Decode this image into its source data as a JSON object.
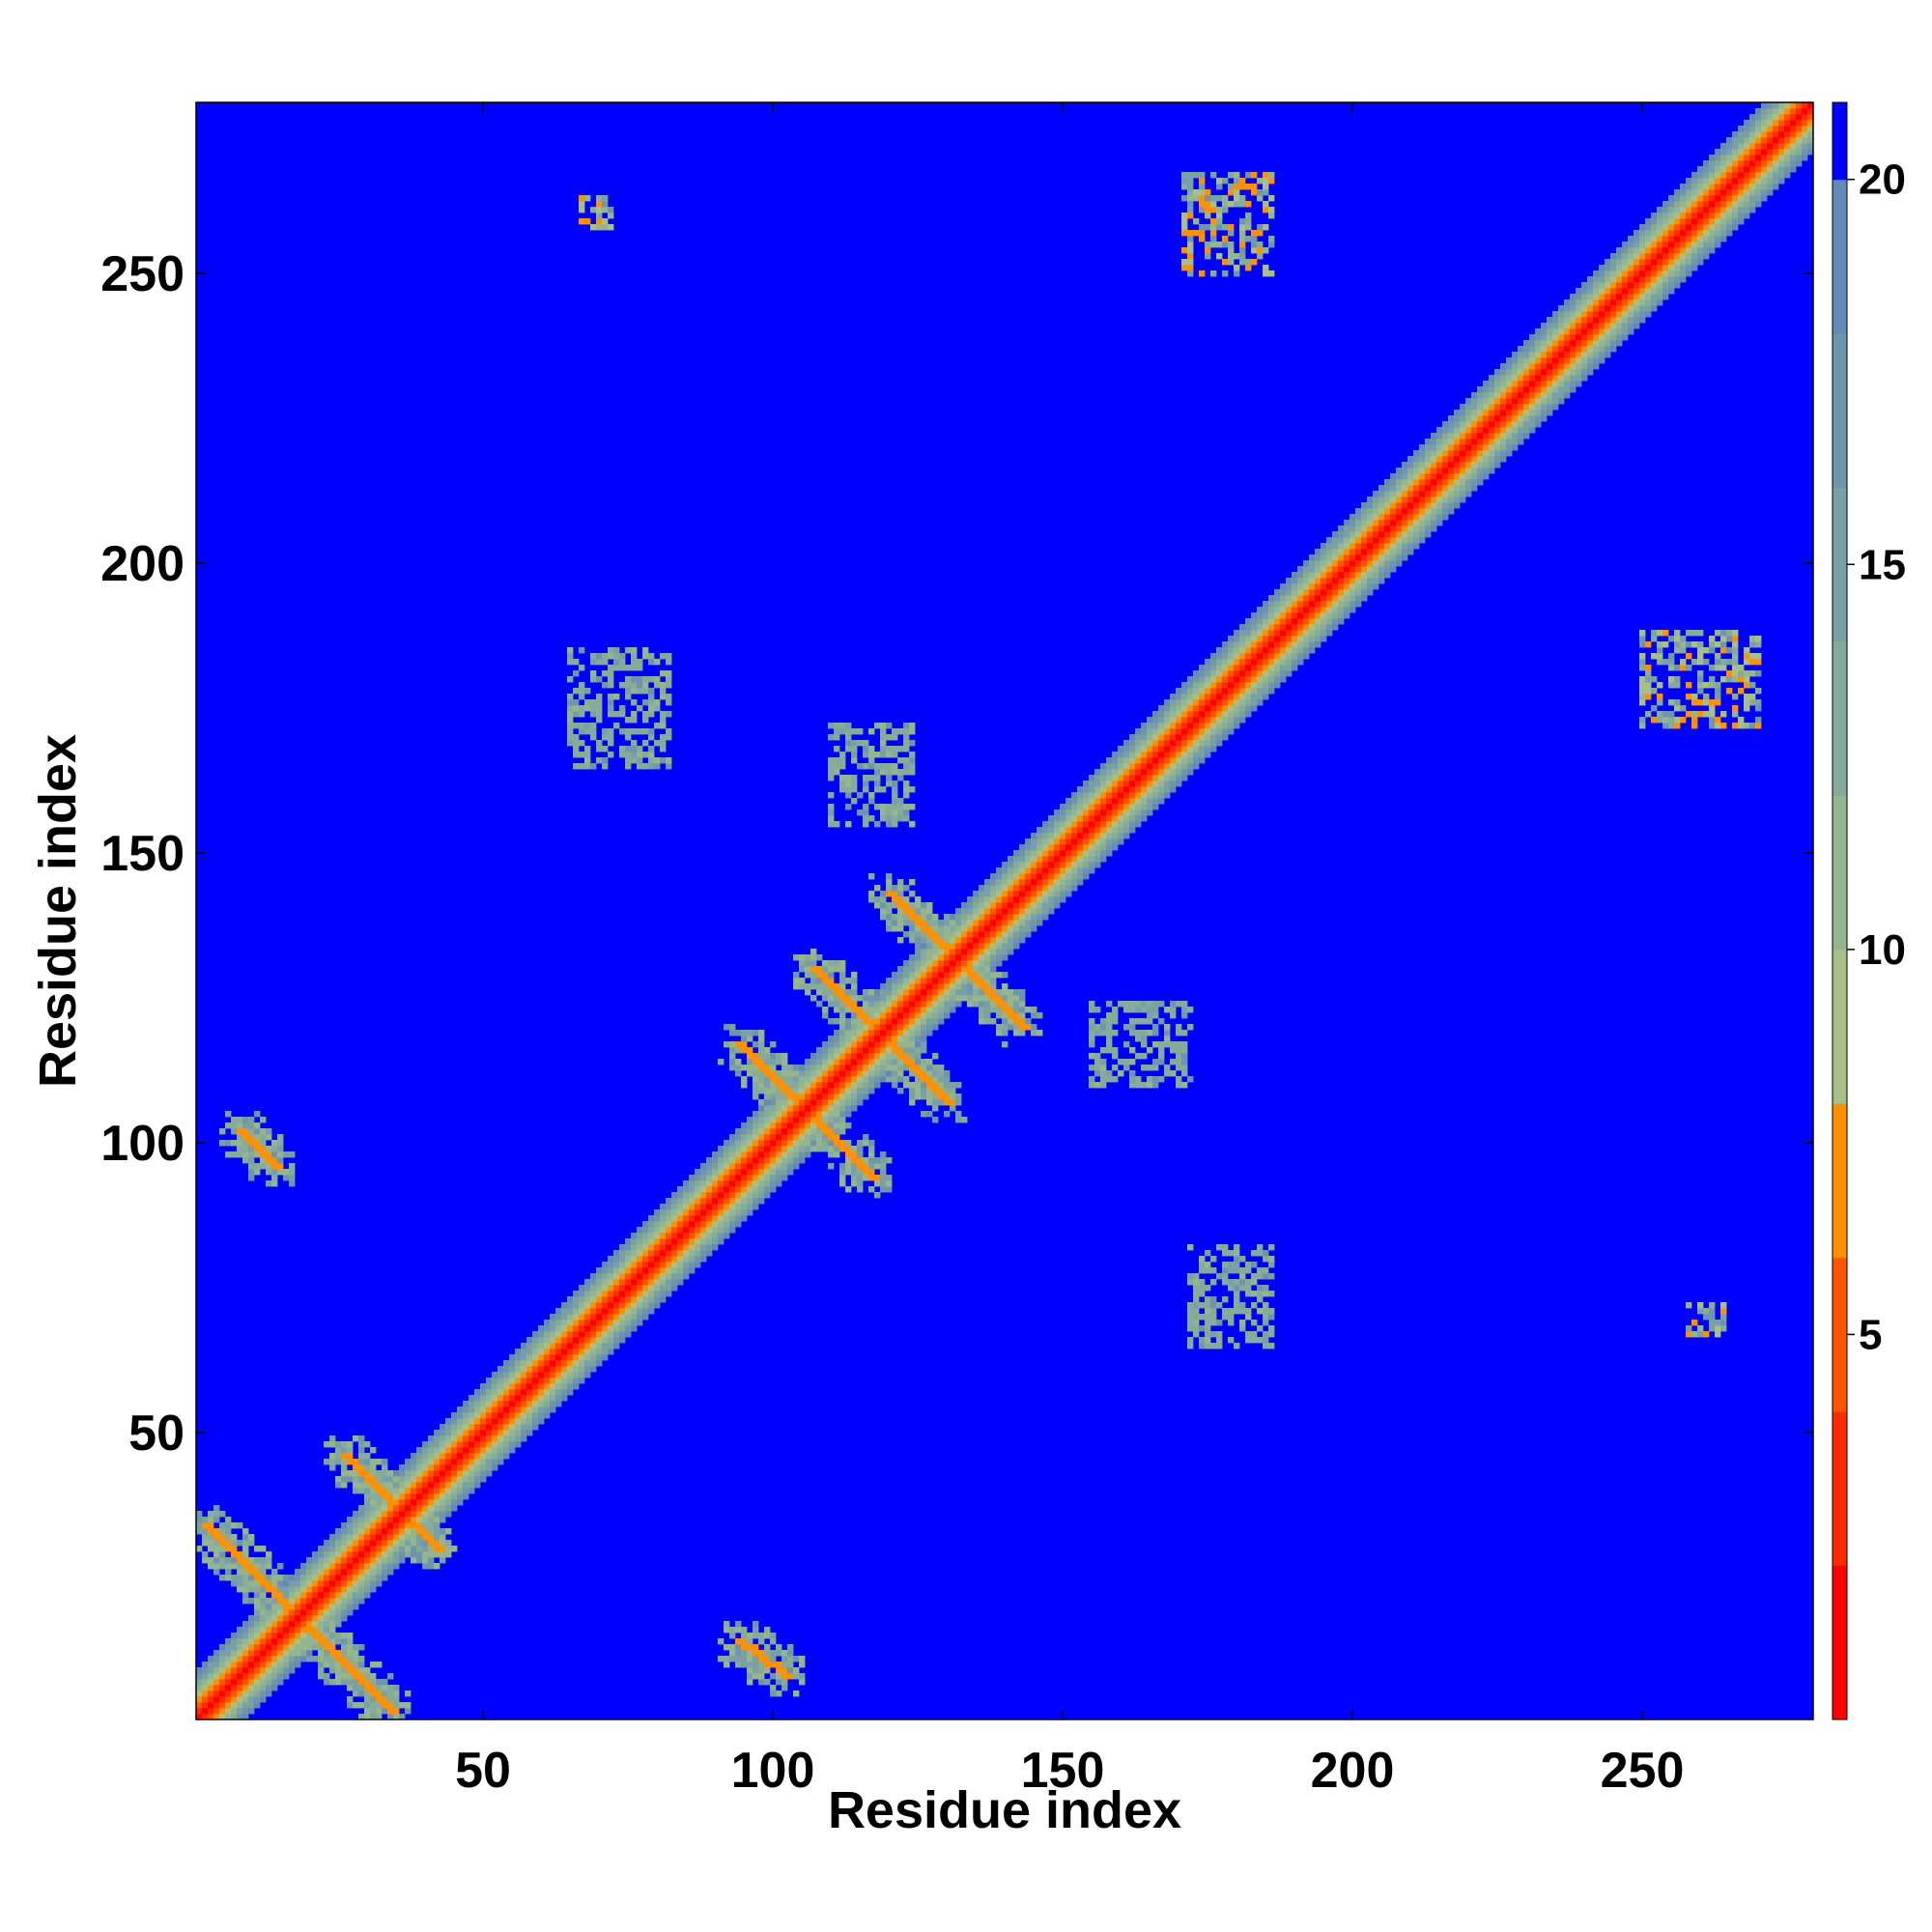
{
  "chart_data": {
    "type": "heatmap",
    "title": "",
    "xlabel": "Residue index",
    "ylabel": "Residue index",
    "x_range": [
      1,
      279
    ],
    "y_range": [
      1,
      279
    ],
    "x_ticks": [
      50,
      100,
      150,
      200,
      250
    ],
    "y_ticks": [
      50,
      100,
      150,
      200,
      250
    ],
    "x_tick_labels": [
      "50",
      "100",
      "150",
      "200",
      "250"
    ],
    "y_tick_labels": [
      "50",
      "100",
      "150",
      "200",
      "250"
    ],
    "colorbar": {
      "range": [
        0,
        21
      ],
      "ticks": [
        5,
        10,
        15,
        20
      ],
      "tick_labels": [
        "5",
        "10",
        "15",
        "20"
      ],
      "colors": [
        {
          "from": 0,
          "to": 2,
          "color": "#ff0000"
        },
        {
          "from": 2,
          "to": 4,
          "color": "#ff2a00"
        },
        {
          "from": 4,
          "to": 6,
          "color": "#ff5500"
        },
        {
          "from": 6,
          "to": 8,
          "color": "#ff9000"
        },
        {
          "from": 8,
          "to": 10,
          "color": "#a8bf8a"
        },
        {
          "from": 10,
          "to": 12,
          "color": "#95b590"
        },
        {
          "from": 12,
          "to": 14,
          "color": "#86ab9a"
        },
        {
          "from": 14,
          "to": 16,
          "color": "#79a0a4"
        },
        {
          "from": 16,
          "to": 18,
          "color": "#6f95ae"
        },
        {
          "from": 18,
          "to": 20,
          "color": "#6489b6"
        },
        {
          "from": 20,
          "to": 21,
          "color": "#0000ff"
        }
      ]
    },
    "background_value": 21,
    "features": {
      "diagonal": {
        "description": "main diagonal band of residue contacts",
        "core_value": 2,
        "width_residues": 8
      },
      "antiparallel_lines": [
        {
          "from": [
            2,
            34
          ],
          "to": [
            34,
            2
          ],
          "value": 6
        },
        {
          "from": [
            26,
            46
          ],
          "to": [
            42,
            30
          ],
          "value": 6
        },
        {
          "from": [
            94,
            117
          ],
          "to": [
            117,
            94
          ],
          "value": 6
        },
        {
          "from": [
            107,
            130
          ],
          "to": [
            130,
            107
          ],
          "value": 6
        },
        {
          "from": [
            120,
            143
          ],
          "to": [
            143,
            120
          ],
          "value": 6
        },
        {
          "from": [
            8,
            102
          ],
          "to": [
            14,
            96
          ],
          "value": 6
        },
        {
          "from": [
            94,
            14
          ],
          "to": [
            102,
            8
          ],
          "value": 6
        }
      ],
      "contact_clusters": [
        {
          "x": [
            67,
            72
          ],
          "y": [
            258,
            263
          ],
          "value": 7
        },
        {
          "x": [
            171,
            186
          ],
          "y": [
            250,
            267
          ],
          "value": 7
        },
        {
          "x": [
            250,
            270
          ],
          "y": [
            172,
            188
          ],
          "value": 7
        },
        {
          "x": [
            258,
            264
          ],
          "y": [
            67,
            72
          ],
          "value": 7
        },
        {
          "x": [
            65,
            82
          ],
          "y": [
            165,
            185
          ],
          "value": 12
        },
        {
          "x": [
            110,
            124
          ],
          "y": [
            155,
            172
          ],
          "value": 12
        },
        {
          "x": [
            172,
            186
          ],
          "y": [
            65,
            82
          ],
          "value": 12
        },
        {
          "x": [
            155,
            172
          ],
          "y": [
            110,
            124
          ],
          "value": 12
        }
      ]
    }
  }
}
